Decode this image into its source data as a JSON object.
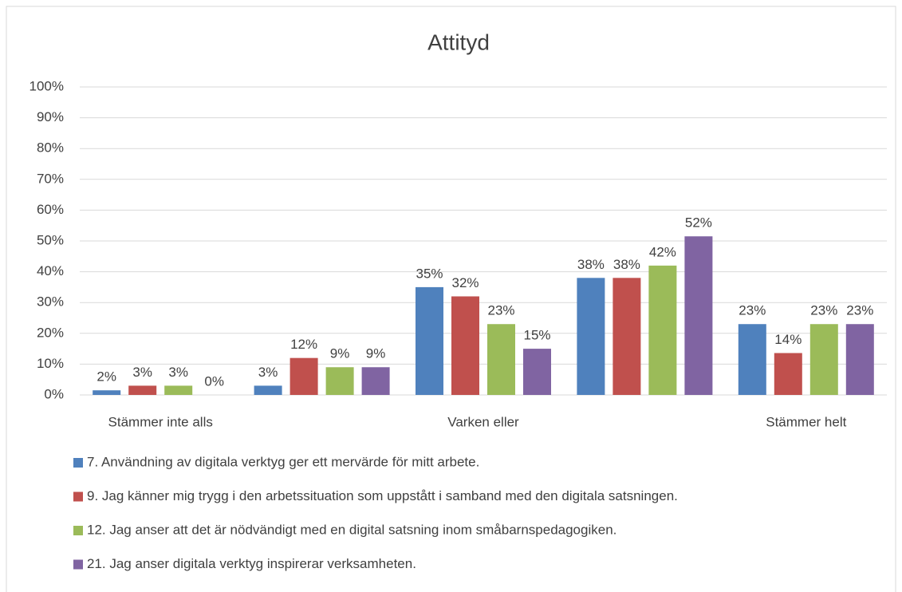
{
  "chart_data": {
    "type": "bar",
    "title": "Attityd",
    "categories": [
      "Stämmer inte alls",
      null,
      "Varken eller",
      null,
      "Stämmer helt"
    ],
    "series": [
      {
        "name": "7. Användning av digitala verktyg ger ett mervärde för mitt arbete.",
        "color": "#4f81bd",
        "values": [
          1.5,
          3,
          35,
          38,
          23
        ],
        "value_labels": [
          "2%",
          "3%",
          "35%",
          "38%",
          "23%"
        ]
      },
      {
        "name": "9. Jag känner mig trygg i den arbetssituation som uppstått i samband med den digitala satsningen.",
        "color": "#c0504d",
        "values": [
          3,
          12,
          32,
          38,
          13.6
        ],
        "value_labels": [
          "3%",
          "12%",
          "32%",
          "38%",
          "14%"
        ]
      },
      {
        "name": "12. Jag anser att det är nödvändigt med en digital satsning inom småbarnspedagogiken.",
        "color": "#9bbb59",
        "values": [
          3,
          9,
          23,
          42,
          23
        ],
        "value_labels": [
          "3%",
          "9%",
          "23%",
          "42%",
          "23%"
        ]
      },
      {
        "name": "21. Jag anser digitala verktyg inspirerar verksamheten.",
        "color": "#8064a2",
        "values": [
          0,
          9,
          15,
          51.5,
          23
        ],
        "value_labels": [
          "0%",
          "9%",
          "15%",
          "52%",
          "23%"
        ]
      }
    ],
    "ylim": [
      0,
      100
    ],
    "yticks": [
      {
        "value": 0,
        "label": "0%"
      },
      {
        "value": 10,
        "label": "10%"
      },
      {
        "value": 20,
        "label": "20%"
      },
      {
        "value": 30,
        "label": "30%"
      },
      {
        "value": 40,
        "label": "40%"
      },
      {
        "value": 50,
        "label": "50%"
      },
      {
        "value": 60,
        "label": "60%"
      },
      {
        "value": 70,
        "label": "70%"
      },
      {
        "value": 80,
        "label": "80%"
      },
      {
        "value": 90,
        "label": "90%"
      },
      {
        "value": 100,
        "label": "100%"
      }
    ],
    "grid": true,
    "legend": "bottom"
  }
}
